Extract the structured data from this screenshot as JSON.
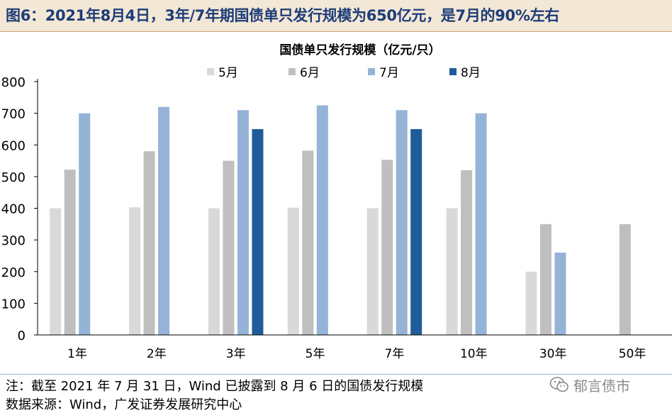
{
  "header": {
    "figure_title": "图6：2021年8月4日，3年/7年期国债单只发行规模为650亿元，是7月的90%左右"
  },
  "chart_data": {
    "type": "bar",
    "title": "国债单只发行规模（亿元/只）",
    "xlabel": "",
    "ylabel": "",
    "categories": [
      "1年",
      "2年",
      "3年",
      "5年",
      "7年",
      "10年",
      "30年",
      "50年"
    ],
    "series": [
      {
        "name": "5月",
        "color": "#d9d9d9",
        "values": [
          400,
          403,
          400,
          402,
          400,
          400,
          200,
          null
        ]
      },
      {
        "name": "6月",
        "color": "#bfbfbf",
        "values": [
          522,
          580,
          550,
          582,
          553,
          520,
          350,
          350
        ]
      },
      {
        "name": "7月",
        "color": "#95b3d7",
        "values": [
          700,
          720,
          710,
          725,
          710,
          700,
          260,
          null
        ]
      },
      {
        "name": "8月",
        "color": "#1f5c99",
        "values": [
          null,
          null,
          650,
          null,
          650,
          null,
          null,
          null
        ]
      }
    ],
    "yticks": [
      0,
      100,
      200,
      300,
      400,
      500,
      600,
      700,
      800
    ],
    "ylim": [
      0,
      800
    ],
    "grid": false,
    "legend_position": "top-center"
  },
  "footer": {
    "note": "注：截至 2021 年 7 月 31 日，Wind 已披露到 8 月 6 日的国债发行规模",
    "source": "数据来源：Wind，广发证券发展研究中心",
    "watermark": "郁言债市",
    "watermark_icon": "wechat-icon"
  }
}
